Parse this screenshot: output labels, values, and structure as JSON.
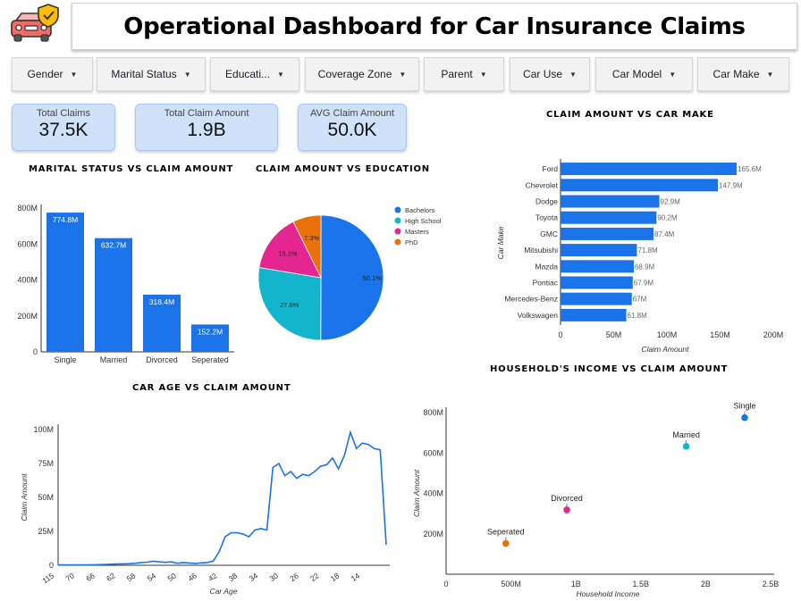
{
  "header": {
    "title": "Operational Dashboard for Car Insurance Claims",
    "logo_icon": "car-shield-icon"
  },
  "filters": [
    {
      "label": "Gender"
    },
    {
      "label": "Marital Status"
    },
    {
      "label": "Educati..."
    },
    {
      "label": "Coverage Zone"
    },
    {
      "label": "Parent"
    },
    {
      "label": "Car Use"
    },
    {
      "label": "Car Model"
    },
    {
      "label": "Car Make"
    }
  ],
  "kpis": {
    "total_claims": {
      "label": "Total Claims",
      "value": "37.5K"
    },
    "total_amount": {
      "label": "Total Claim Amount",
      "value": "1.9B"
    },
    "avg_amount": {
      "label": "AVG Claim Amount",
      "value": "50.0K"
    }
  },
  "colors": {
    "blue": "#1a73e8",
    "teal": "#12b5cb",
    "pink": "#e52592",
    "orange": "#e8710a",
    "kpi_bg": "#cfe2fa"
  },
  "chart_data": [
    {
      "id": "marital",
      "type": "bar",
      "title": "MARITAL STATUS VS CLAIM AMOUNT",
      "categories": [
        "Single",
        "Married",
        "Divorced",
        "Seperated"
      ],
      "values": [
        774.8,
        632.7,
        318.4,
        152.2
      ],
      "data_labels": [
        "774.8M",
        "632.7M",
        "318.4M",
        "152.2M"
      ],
      "yticks": [
        "0",
        "200M",
        "400M",
        "600M",
        "800M"
      ],
      "ylim": [
        0,
        800
      ]
    },
    {
      "id": "education",
      "type": "pie",
      "title": "CLAIM AMOUNT VS EDUCATION",
      "labels": [
        "Bachelors",
        "High School",
        "Masters",
        "PhD"
      ],
      "values": [
        50.1,
        27.6,
        15.1,
        7.3
      ],
      "data_labels": [
        "50.1%",
        "27.6%",
        "15.1%",
        "7.3%"
      ]
    },
    {
      "id": "carmake",
      "type": "bar",
      "title": "CLAIM AMOUNT VS CAR MAKE",
      "categories": [
        "Ford",
        "Chevrolet",
        "Dodge",
        "Toyota",
        "GMC",
        "Mitsubishi",
        "Mazda",
        "Pontiac",
        "Mercedes-Benz",
        "Volkswagen"
      ],
      "values": [
        165.6,
        147.9,
        92.9,
        90.2,
        87.4,
        71.8,
        68.9,
        67.9,
        67,
        61.8
      ],
      "data_labels": [
        "165.6M",
        "147.9M",
        "92.9M",
        "90.2M",
        "87.4M",
        "71.8M",
        "68.9M",
        "67.9M",
        "67M",
        "61.8M"
      ],
      "xticks": [
        "0",
        "50M",
        "100M",
        "150M",
        "200M"
      ],
      "xlim": [
        0,
        200
      ],
      "xlabel": "Claim Amount",
      "ylabel": "Car Make"
    },
    {
      "id": "carage",
      "type": "line",
      "title": "CAR AGE VS CLAIM AMOUNT",
      "x": [
        115,
        110,
        105,
        100,
        95,
        90,
        85,
        80,
        76,
        74,
        72,
        70,
        68,
        66,
        64,
        62,
        60,
        58,
        56,
        54,
        52,
        50,
        48,
        46,
        44,
        42,
        40,
        39,
        38,
        37,
        36,
        35,
        34,
        33,
        32,
        31,
        30,
        29,
        28,
        27,
        26,
        25,
        24,
        23,
        22,
        21,
        20,
        19,
        18,
        17,
        16,
        15,
        14,
        13,
        12,
        11
      ],
      "y": [
        0.3,
        0.3,
        0.3,
        0.3,
        0.3,
        0.3,
        0.4,
        0.5,
        0.6,
        0.8,
        1,
        1,
        1.2,
        1.5,
        2,
        2.3,
        3,
        2.5,
        2.2,
        2.5,
        1.5,
        2,
        1.7,
        1.3,
        1.8,
        2,
        3,
        10,
        21,
        24,
        24,
        23,
        21,
        26,
        27,
        26,
        72,
        75,
        66,
        69,
        64,
        67,
        66,
        69,
        73,
        74,
        79,
        71,
        81,
        98,
        86,
        90,
        89,
        86,
        85,
        15
      ],
      "xticks": [
        "115",
        "70",
        "66",
        "62",
        "58",
        "54",
        "50",
        "46",
        "42",
        "38",
        "34",
        "30",
        "26",
        "22",
        "18",
        "14"
      ],
      "yticks": [
        "0",
        "25M",
        "50M",
        "75M",
        "100M"
      ],
      "ylim": [
        0,
        100
      ],
      "xlabel": "Car Age",
      "ylabel": "Claim Amount"
    },
    {
      "id": "income",
      "type": "scatter",
      "title": "HOUSEHOLD'S INCOME VS CLAIM AMOUNT",
      "points": [
        {
          "label": "Single",
          "x": 2.3,
          "y": 774.8,
          "color": "#1a73e8"
        },
        {
          "label": "Married",
          "x": 1.85,
          "y": 632.7,
          "color": "#12b5cb"
        },
        {
          "label": "Divorced",
          "x": 0.93,
          "y": 318.4,
          "color": "#e52592"
        },
        {
          "label": "Seperated",
          "x": 0.46,
          "y": 152.2,
          "color": "#e8710a"
        }
      ],
      "xticks": [
        "0",
        "500M",
        "1B",
        "1.5B",
        "2B",
        "2.5B"
      ],
      "yticks": [
        "200M",
        "400M",
        "600M",
        "800M"
      ],
      "xlim": [
        0,
        2.5
      ],
      "ylim": [
        0,
        800
      ],
      "xlabel": "Household Income",
      "ylabel": "Claim Amount"
    }
  ]
}
